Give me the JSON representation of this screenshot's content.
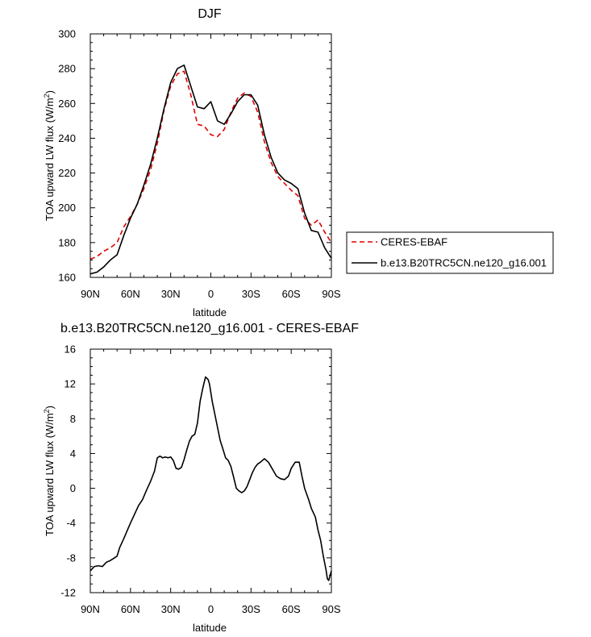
{
  "chart_data": [
    {
      "type": "line",
      "title": "DJF",
      "xlabel": "latitude",
      "ylabel": "TOA upward LW flux (W/m",
      "ylabel_sup": "2",
      "ylabel_end": ")",
      "xlim": [
        90,
        -90
      ],
      "ylim": [
        160,
        300
      ],
      "x_ticks": [
        90,
        60,
        30,
        0,
        -30,
        -60,
        -90
      ],
      "x_tick_labels": [
        "90N",
        "60N",
        "30N",
        "0",
        "30S",
        "60S",
        "90S"
      ],
      "y_ticks": [
        160,
        180,
        200,
        220,
        240,
        260,
        280,
        300
      ],
      "y_tick_labels": [
        "160",
        "180",
        "200",
        "220",
        "240",
        "260",
        "280",
        "300"
      ],
      "legend_position": "right",
      "series": [
        {
          "name": "CERES-EBAF",
          "color": "#dd0000",
          "dash": "dashed",
          "x": [
            90,
            85,
            80,
            75,
            70,
            65,
            60,
            55,
            50,
            45,
            40,
            35,
            30,
            25,
            20,
            15,
            10,
            5,
            0,
            -5,
            -10,
            -15,
            -20,
            -25,
            -30,
            -35,
            -40,
            -45,
            -50,
            -55,
            -60,
            -65,
            -70,
            -75,
            -80,
            -85,
            -90
          ],
          "values": [
            170.5,
            172,
            175,
            177,
            180,
            189,
            195,
            202,
            211,
            222,
            237,
            256,
            270,
            277,
            278.5,
            265,
            248,
            247,
            242,
            241,
            245,
            255,
            263,
            266,
            264,
            255,
            238,
            226,
            218,
            214,
            210,
            207,
            194,
            190,
            193,
            186,
            180
          ]
        },
        {
          "name": "b.e13.B20TRC5CN.ne120_g16.001",
          "color": "#000000",
          "dash": "solid",
          "x": [
            90,
            85,
            80,
            75,
            70,
            65,
            60,
            55,
            50,
            45,
            40,
            35,
            30,
            25,
            20,
            15,
            10,
            5,
            0,
            -5,
            -10,
            -15,
            -20,
            -25,
            -30,
            -35,
            -40,
            -45,
            -50,
            -55,
            -60,
            -65,
            -70,
            -75,
            -80,
            -85,
            -90
          ],
          "values": [
            162,
            163,
            166,
            170,
            173,
            184,
            194,
            202,
            213,
            225,
            240,
            257,
            272,
            280,
            282,
            270,
            258,
            257,
            261,
            250,
            248,
            254,
            261,
            265,
            265,
            259,
            242,
            229,
            220,
            216,
            214,
            211,
            197,
            187,
            186,
            177,
            171
          ]
        }
      ]
    },
    {
      "type": "line",
      "title": "b.e13.B20TRC5CN.ne120_g16.001 - CERES-EBAF",
      "xlabel": "latitude",
      "ylabel": "TOA upward LW flux (W/m",
      "ylabel_sup": "2",
      "ylabel_end": ")",
      "xlim": [
        90,
        -90
      ],
      "ylim": [
        -12,
        16
      ],
      "x_ticks": [
        90,
        60,
        30,
        0,
        -30,
        -60,
        -90
      ],
      "x_tick_labels": [
        "90N",
        "60N",
        "30N",
        "0",
        "30S",
        "60S",
        "90S"
      ],
      "y_ticks": [
        -12,
        -8,
        -4,
        0,
        4,
        8,
        12,
        16
      ],
      "y_tick_labels": [
        "-12",
        "-8",
        "-4",
        "0",
        "4",
        "8",
        "12",
        "16"
      ],
      "series": [
        {
          "color": "#000000",
          "dash": "solid",
          "x": [
            90,
            87,
            84,
            81,
            78,
            75,
            72,
            70,
            68,
            65,
            62,
            60,
            57,
            54,
            51,
            48,
            45,
            42,
            40,
            38,
            36,
            34,
            32,
            30,
            28,
            26,
            24,
            22,
            20,
            18,
            16,
            14,
            12,
            10,
            8,
            6,
            4,
            2,
            1,
            0,
            -1,
            -3,
            -5,
            -7,
            -9,
            -11,
            -13,
            -15,
            -17,
            -19,
            -21,
            -23,
            -25,
            -27,
            -29,
            -31,
            -33,
            -35,
            -37,
            -40,
            -43,
            -46,
            -49,
            -52,
            -55,
            -58,
            -60,
            -63,
            -66,
            -68,
            -70,
            -73,
            -75,
            -78,
            -80,
            -82,
            -84,
            -86,
            -87,
            -88,
            -90
          ],
          "values": [
            -9.5,
            -9.0,
            -8.9,
            -9.0,
            -8.5,
            -8.3,
            -8.0,
            -7.8,
            -6.8,
            -5.8,
            -4.7,
            -4.0,
            -3.0,
            -2.0,
            -1.3,
            -0.2,
            0.8,
            2.0,
            3.5,
            3.7,
            3.5,
            3.6,
            3.5,
            3.6,
            3.2,
            2.3,
            2.2,
            2.4,
            3.3,
            4.4,
            5.4,
            6.0,
            6.2,
            7.5,
            10.0,
            11.5,
            12.8,
            12.5,
            12.0,
            11.0,
            10.0,
            8.5,
            7.0,
            5.5,
            4.5,
            3.5,
            3.2,
            2.5,
            1.3,
            0.0,
            -0.3,
            -0.5,
            -0.3,
            0.2,
            1.0,
            1.8,
            2.4,
            2.8,
            3.0,
            3.4,
            3.0,
            2.2,
            1.4,
            1.1,
            1.0,
            1.4,
            2.3,
            3.0,
            3.0,
            1.4,
            0.0,
            -1.3,
            -2.3,
            -3.3,
            -4.8,
            -6.0,
            -7.8,
            -9.4,
            -10.4,
            -10.6,
            -9.5
          ]
        }
      ]
    }
  ]
}
